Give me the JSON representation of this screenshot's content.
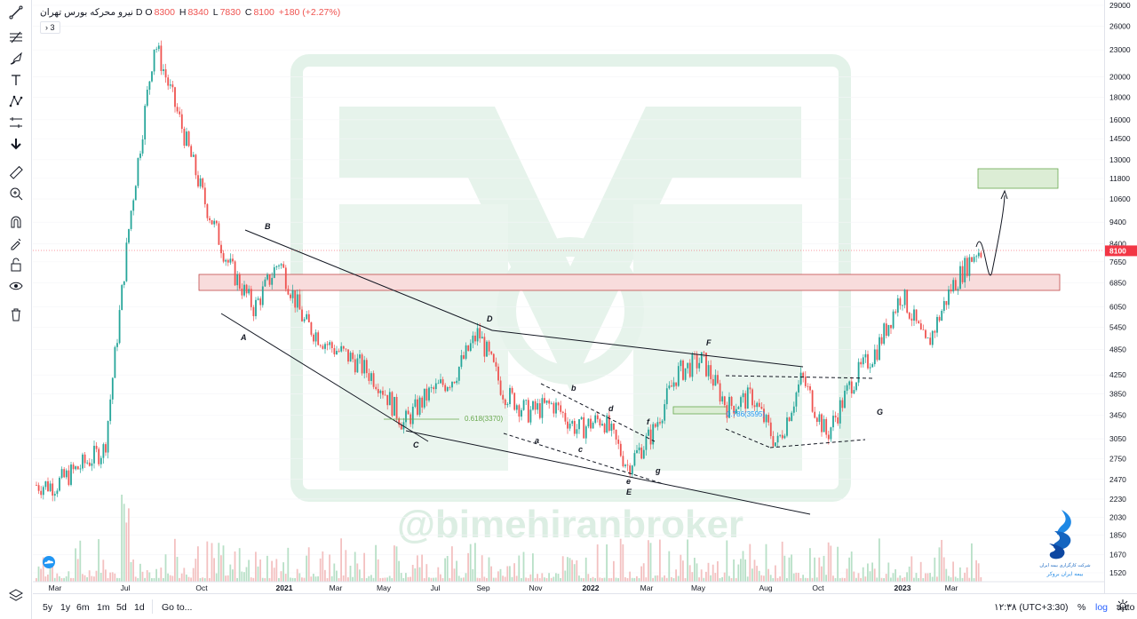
{
  "legend": {
    "symbol": "نیرو محرکه",
    "timeframe": "D",
    "exchange": "بورس تهران",
    "open_label": "O",
    "open": "8300",
    "high_label": "H",
    "high": "8340",
    "low_label": "L",
    "low": "7830",
    "close_label": "C",
    "close": "8100",
    "change": "+180 (+2.27%)",
    "collapse_count": "3"
  },
  "watermark": "@bimehiranbroker",
  "current_price": "8100",
  "bottom": {
    "ranges": [
      "5y",
      "1y",
      "6m",
      "1m",
      "5d",
      "1d"
    ],
    "goto": "Go to...",
    "time": "۱۲:۳۸ (UTC+3:30)",
    "percent": "%",
    "log": "log",
    "auto": "auto"
  },
  "brand_text": [
    "شرکت کارگزاری بیمه ایران",
    "بیمه ایران بروکر"
  ],
  "colors": {
    "up": "#26a69a",
    "down": "#ef5350",
    "line": "#131722",
    "zone_red": "#f7d8d8",
    "zone_green": "#d9ead3",
    "price_line": "#f23645",
    "watermark": "#dff0e6"
  },
  "chart_data": {
    "type": "candlestick",
    "scale": "log",
    "ylim": [
      1470,
      29000
    ],
    "x_tick_labels": [
      "Mar",
      "Jul",
      "Oct",
      "2021",
      "Mar",
      "May",
      "Jul",
      "Sep",
      "Nov",
      "2022",
      "Mar",
      "May",
      "Aug",
      "Oct",
      "2023",
      "Mar"
    ],
    "y_tick_labels": [
      "29000",
      "26000",
      "23000",
      "20000",
      "18000",
      "16000",
      "14500",
      "13000",
      "11800",
      "10600",
      "9400",
      "8400",
      "7650",
      "6850",
      "6050",
      "5450",
      "4850",
      "4250",
      "3850",
      "3450",
      "3050",
      "2750",
      "2470",
      "2230",
      "2030",
      "1850",
      "1670",
      "1520"
    ],
    "price_path_x": [
      "2020-03",
      "2020-05",
      "2020-06",
      "2020-07",
      "2020-08",
      "2020-09",
      "2020-10",
      "2020-11",
      "2020-12",
      "2021-01",
      "2021-02",
      "2021-03",
      "2021-04",
      "2021-05",
      "2021-06",
      "2021-07",
      "2021-08",
      "2021-09",
      "2021-10",
      "2021-11",
      "2021-12",
      "2022-01",
      "2022-02",
      "2022-03",
      "2022-04",
      "2022-05",
      "2022-06",
      "2022-07",
      "2022-08",
      "2022-09",
      "2022-10",
      "2022-11",
      "2022-12",
      "2023-01",
      "2023-02",
      "2023-03",
      "2023-04"
    ],
    "price_path_close": [
      2400,
      2900,
      9500,
      24000,
      16000,
      10500,
      7500,
      6000,
      7700,
      5600,
      4950,
      4600,
      4100,
      3300,
      3850,
      4200,
      5300,
      3900,
      3500,
      3650,
      3200,
      3400,
      2650,
      3150,
      4300,
      4600,
      3600,
      3800,
      2950,
      4200,
      3100,
      4100,
      4850,
      6500,
      4900,
      6700,
      8100
    ],
    "annotations": {
      "wave_labels": [
        "A",
        "B",
        "C",
        "D",
        "E",
        "F",
        "G",
        "a",
        "b",
        "c",
        "d",
        "e",
        "f",
        "g"
      ],
      "fib_labels": [
        "0.618(3370)",
        "0.786(3595)"
      ],
      "zones": [
        {
          "kind": "resistance",
          "low": 6700,
          "high": 7200
        },
        {
          "kind": "target",
          "low": 11000,
          "high": 12300
        }
      ]
    }
  }
}
